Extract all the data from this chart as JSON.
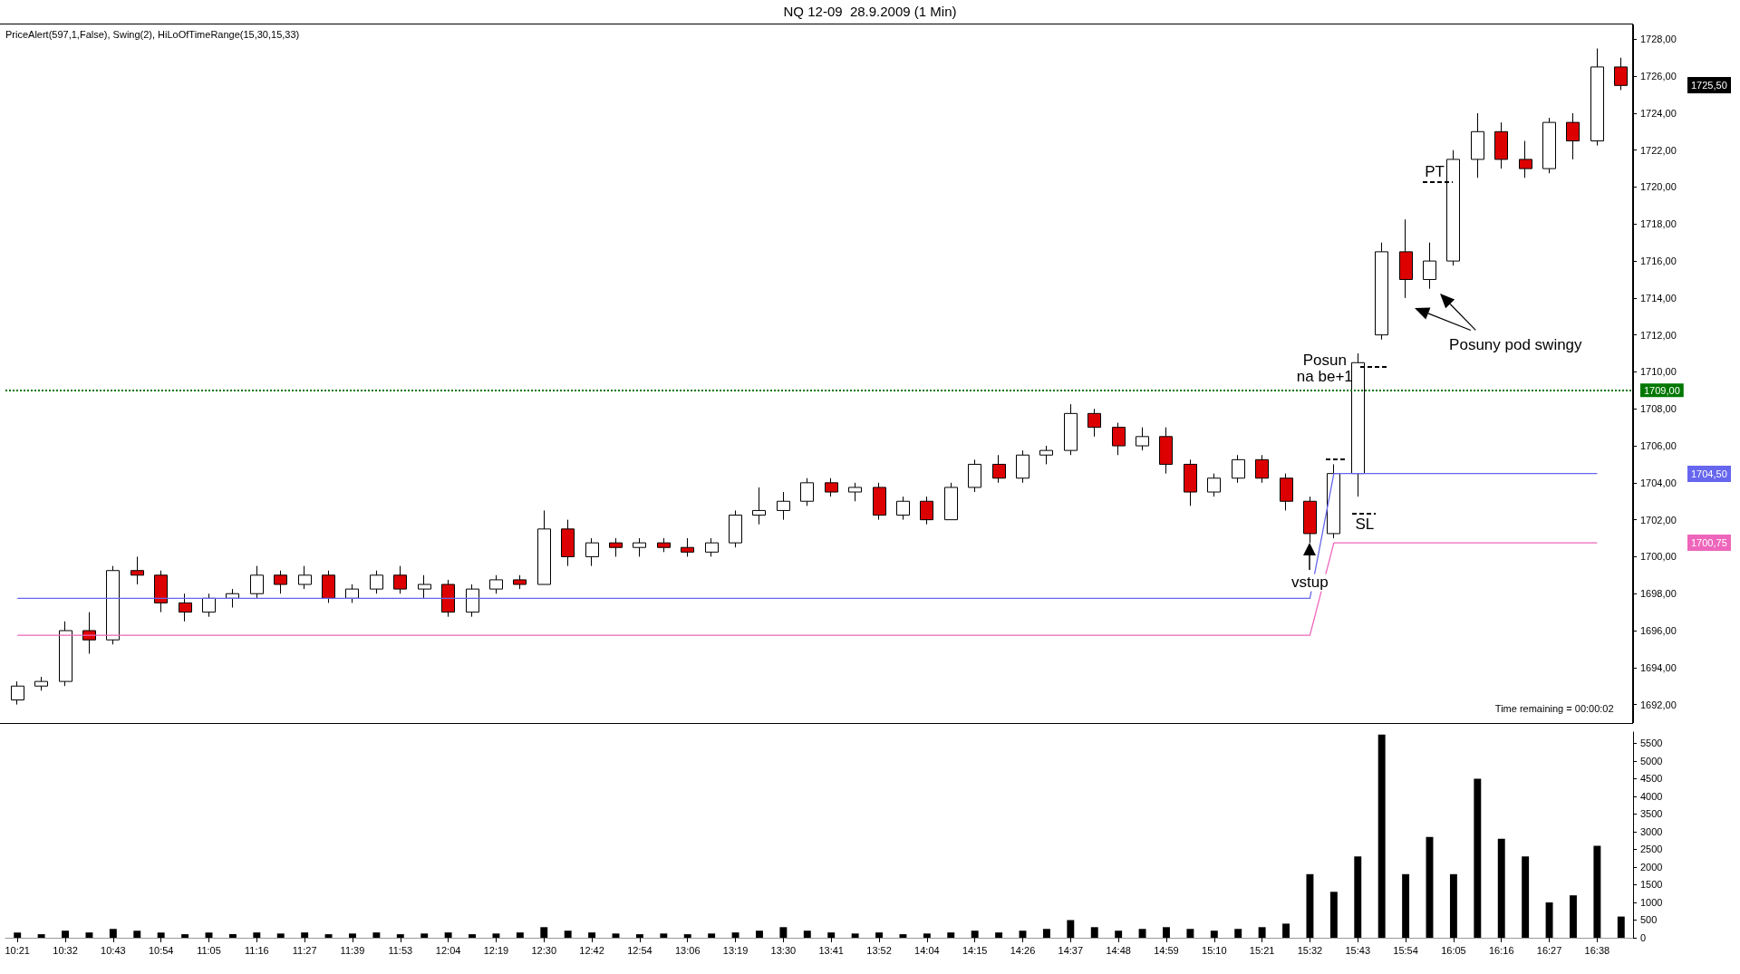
{
  "chart_data": [
    {
      "type": "candlestick",
      "title": "NQ 12-09  28.9.2009 (1 Min)",
      "categories": [
        "10:21",
        null,
        "10:32",
        null,
        "10:43",
        null,
        "10:54",
        null,
        "11:05",
        null,
        "11:16",
        null,
        "11:27",
        null,
        "11:39",
        null,
        "11:53",
        null,
        "12:04",
        null,
        "12:19",
        null,
        "12:30",
        null,
        "12:42",
        null,
        "12:54",
        null,
        "13:06",
        null,
        "13:19",
        null,
        "13:30",
        null,
        "13:41",
        null,
        "13:52",
        null,
        "14:04",
        null,
        "14:15",
        null,
        "14:26",
        null,
        "14:37",
        null,
        "14:48",
        null,
        "14:59",
        null,
        "15:10",
        null,
        "15:21",
        null,
        "15:32",
        null,
        "15:43",
        null,
        "15:54",
        null,
        "16:05",
        null,
        "16:16",
        null,
        "16:27",
        null,
        "16:38",
        null
      ],
      "ohlc": [
        [
          1692.25,
          1693.25,
          1692,
          1693
        ],
        [
          1693,
          1693.5,
          1692.75,
          1693.25
        ],
        [
          1693.25,
          1696.5,
          1693,
          1696
        ],
        [
          1696,
          1697,
          1694.75,
          1695.5
        ],
        [
          1695.5,
          1699.5,
          1695.25,
          1699.25
        ],
        [
          1699.25,
          1700,
          1698.5,
          1699
        ],
        [
          1699,
          1699.25,
          1697,
          1697.5
        ],
        [
          1697.5,
          1698,
          1696.5,
          1697
        ],
        [
          1697,
          1698,
          1696.75,
          1697.75
        ],
        [
          1697.75,
          1698.25,
          1697.25,
          1698
        ],
        [
          1698,
          1699.5,
          1697.75,
          1699
        ],
        [
          1699,
          1699.25,
          1698,
          1698.5
        ],
        [
          1698.5,
          1699.5,
          1698.25,
          1699
        ],
        [
          1699,
          1699.25,
          1697.5,
          1697.75
        ],
        [
          1697.75,
          1698.5,
          1697.5,
          1698.25
        ],
        [
          1698.25,
          1699.25,
          1698,
          1699
        ],
        [
          1699,
          1699.5,
          1698,
          1698.25
        ],
        [
          1698.25,
          1699,
          1697.75,
          1698.5
        ],
        [
          1698.5,
          1698.75,
          1696.75,
          1697
        ],
        [
          1697,
          1698.5,
          1696.75,
          1698.25
        ],
        [
          1698.25,
          1699,
          1698,
          1698.75
        ],
        [
          1698.75,
          1699,
          1698.25,
          1698.5
        ],
        [
          1698.5,
          1702.5,
          1698.5,
          1701.5
        ],
        [
          1701.5,
          1702,
          1699.5,
          1700
        ],
        [
          1700,
          1701,
          1699.5,
          1700.75
        ],
        [
          1700.75,
          1701,
          1700,
          1700.5
        ],
        [
          1700.5,
          1701,
          1700,
          1700.75
        ],
        [
          1700.75,
          1701,
          1700.25,
          1700.5
        ],
        [
          1700.5,
          1701,
          1700,
          1700.25
        ],
        [
          1700.25,
          1701,
          1700,
          1700.75
        ],
        [
          1700.75,
          1702.5,
          1700.5,
          1702.25
        ],
        [
          1702.25,
          1703.75,
          1701.75,
          1702.5
        ],
        [
          1702.5,
          1703.5,
          1702,
          1703
        ],
        [
          1703,
          1704.25,
          1702.75,
          1704
        ],
        [
          1704,
          1704.25,
          1703.25,
          1703.5
        ],
        [
          1703.5,
          1704,
          1703,
          1703.75
        ],
        [
          1703.75,
          1704,
          1702,
          1702.25
        ],
        [
          1702.25,
          1703.25,
          1702,
          1703
        ],
        [
          1703,
          1703.25,
          1701.75,
          1702
        ],
        [
          1702,
          1704,
          1702,
          1703.75
        ],
        [
          1703.75,
          1705.25,
          1703.5,
          1705
        ],
        [
          1705,
          1705.5,
          1704,
          1704.25
        ],
        [
          1704.25,
          1705.75,
          1704,
          1705.5
        ],
        [
          1705.5,
          1706,
          1705,
          1705.75
        ],
        [
          1705.75,
          1708.25,
          1705.5,
          1707.75
        ],
        [
          1707.75,
          1708,
          1706.5,
          1707
        ],
        [
          1707,
          1707.25,
          1705.5,
          1706
        ],
        [
          1706,
          1707,
          1705.75,
          1706.5
        ],
        [
          1706.5,
          1707,
          1704.5,
          1705
        ],
        [
          1705,
          1705.25,
          1702.75,
          1703.5
        ],
        [
          1703.5,
          1704.5,
          1703.25,
          1704.25
        ],
        [
          1704.25,
          1705.5,
          1704,
          1705.25
        ],
        [
          1705.25,
          1705.5,
          1704,
          1704.25
        ],
        [
          1704.25,
          1704.5,
          1702.5,
          1703
        ],
        [
          1703,
          1703.25,
          1700.75,
          1701.25
        ],
        [
          1701.25,
          1705,
          1701,
          1704.5
        ],
        [
          1704.5,
          1711,
          1703.25,
          1710.5
        ],
        [
          1712,
          1717,
          1711.75,
          1716.5
        ],
        [
          1716.5,
          1718.25,
          1714,
          1715
        ],
        [
          1715,
          1717,
          1714.5,
          1716
        ],
        [
          1716,
          1722,
          1715.75,
          1721.5
        ],
        [
          1721.5,
          1724,
          1720.5,
          1723
        ],
        [
          1723,
          1723.5,
          1721,
          1721.5
        ],
        [
          1721.5,
          1722.5,
          1720.5,
          1721
        ],
        [
          1721,
          1723.75,
          1720.75,
          1723.5
        ],
        [
          1723.5,
          1724,
          1721.5,
          1722.5
        ],
        [
          1722.5,
          1727.5,
          1722.25,
          1726.5
        ],
        [
          1726.5,
          1727,
          1725.25,
          1725.5
        ]
      ],
      "series": [
        {
          "type": "line",
          "color": "#6666ee",
          "values": [
            1697.75,
            1697.75,
            1697.75,
            1697.75,
            1697.75,
            1697.75,
            1697.75,
            1697.75,
            1697.75,
            1697.75,
            1697.75,
            1697.75,
            1697.75,
            1697.75,
            1697.75,
            1697.75,
            1697.75,
            1697.75,
            1697.75,
            1697.75,
            1697.75,
            1697.75,
            1697.75,
            1697.75,
            1697.75,
            1697.75,
            1697.75,
            1697.75,
            1697.75,
            1697.75,
            1697.75,
            1697.75,
            1697.75,
            1697.75,
            1697.75,
            1697.75,
            1697.75,
            1697.75,
            1697.75,
            1697.75,
            1697.75,
            1697.75,
            1697.75,
            1697.75,
            1697.75,
            1697.75,
            1697.75,
            1697.75,
            1697.75,
            1697.75,
            1697.75,
            1697.75,
            1697.75,
            1697.75,
            1697.75,
            1704.5,
            1704.5,
            1704.5,
            1704.5,
            1704.5,
            1704.5,
            1704.5,
            1704.5,
            1704.5,
            1704.5,
            1704.5,
            1704.5,
            null
          ]
        },
        {
          "type": "line",
          "color": "#ee66bb",
          "values": [
            1695.75,
            1695.75,
            1695.75,
            1695.75,
            1695.75,
            1695.75,
            1695.75,
            1695.75,
            1695.75,
            1695.75,
            1695.75,
            1695.75,
            1695.75,
            1695.75,
            1695.75,
            1695.75,
            1695.75,
            1695.75,
            1695.75,
            1695.75,
            1695.75,
            1695.75,
            1695.75,
            1695.75,
            1695.75,
            1695.75,
            1695.75,
            1695.75,
            1695.75,
            1695.75,
            1695.75,
            1695.75,
            1695.75,
            1695.75,
            1695.75,
            1695.75,
            1695.75,
            1695.75,
            1695.75,
            1695.75,
            1695.75,
            1695.75,
            1695.75,
            1695.75,
            1695.75,
            1695.75,
            1695.75,
            1695.75,
            1695.75,
            1695.75,
            1695.75,
            1695.75,
            1695.75,
            1695.75,
            1695.75,
            1700.75,
            1700.75,
            1700.75,
            1700.75,
            1700.75,
            1700.75,
            1700.75,
            1700.75,
            1700.75,
            1700.75,
            1700.75,
            1700.75,
            null
          ]
        }
      ],
      "ylim": [
        1691,
        1728.8
      ],
      "yticks": [
        {
          "value": 1692,
          "label": "1692,00"
        },
        {
          "value": 1694,
          "label": "1694,00"
        },
        {
          "value": 1696,
          "label": "1696,00"
        },
        {
          "value": 1698,
          "label": "1698,00"
        },
        {
          "value": 1700,
          "label": "1700,00"
        },
        {
          "value": 1702,
          "label": "1702,00"
        },
        {
          "value": 1704,
          "label": "1704,00"
        },
        {
          "value": 1706,
          "label": "1706,00"
        },
        {
          "value": 1708,
          "label": "1708,00"
        },
        {
          "value": 1710,
          "label": "1710,00"
        },
        {
          "value": 1712,
          "label": "1712,00"
        },
        {
          "value": 1714,
          "label": "1714,00"
        },
        {
          "value": 1716,
          "label": "1716,00"
        },
        {
          "value": 1718,
          "label": "1718,00"
        },
        {
          "value": 1720,
          "label": "1720,00"
        },
        {
          "value": 1722,
          "label": "1722,00"
        },
        {
          "value": 1724,
          "label": "1724,00"
        },
        {
          "value": 1726,
          "label": "1726,00"
        },
        {
          "value": 1728,
          "label": "1728,00"
        }
      ],
      "ref_lines": [
        {
          "axis": "y",
          "value": 1709,
          "label": "1709,00",
          "color": "#007700",
          "line_style": "dotted"
        }
      ],
      "annotations": [
        "PriceAlert(597,1,False), Swing(2), HiLoOfTimeRange(15,30,15,33)",
        "Time remaining = 00:00:02",
        "PT",
        "SL",
        {
          "text": "vstup",
          "x": "15:32",
          "y": 1700.75
        },
        "Posun\nna be+1",
        "Posuny pod swingy",
        "1725,50",
        "1704,50",
        "1700,75"
      ],
      "grid": false,
      "tick_labels": "y"
    },
    {
      "type": "bar",
      "categories": [
        "10:21",
        null,
        "10:32",
        null,
        "10:43",
        null,
        "10:54",
        null,
        "11:05",
        null,
        "11:16",
        null,
        "11:27",
        null,
        "11:39",
        null,
        "11:53",
        null,
        "12:04",
        null,
        "12:19",
        null,
        "12:30",
        null,
        "12:42",
        null,
        "12:54",
        null,
        "13:06",
        null,
        "13:19",
        null,
        "13:30",
        null,
        "13:41",
        null,
        "13:52",
        null,
        "14:04",
        null,
        "14:15",
        null,
        "14:26",
        null,
        "14:37",
        null,
        "14:48",
        null,
        "14:59",
        null,
        "15:10",
        null,
        "15:21",
        null,
        "15:32",
        null,
        "15:43",
        null,
        "15:54",
        null,
        "16:05",
        null,
        "16:16",
        null,
        "16:27",
        null,
        "16:38",
        null
      ],
      "values": [
        150,
        100,
        200,
        150,
        250,
        200,
        150,
        100,
        150,
        100,
        150,
        120,
        150,
        100,
        120,
        150,
        100,
        120,
        150,
        100,
        120,
        150,
        300,
        200,
        150,
        120,
        100,
        120,
        100,
        120,
        150,
        200,
        300,
        200,
        150,
        120,
        150,
        100,
        120,
        150,
        200,
        150,
        200,
        250,
        500,
        300,
        200,
        250,
        300,
        250,
        200,
        250,
        300,
        400,
        1800,
        1300,
        2300,
        5750,
        1800,
        2850,
        1800,
        4500,
        2800,
        2300,
        1000,
        1200,
        2600,
        600
      ],
      "color": "#000000",
      "ylim": [
        0,
        5820
      ],
      "yticks": [
        0,
        500,
        1000,
        1500,
        2000,
        2500,
        3000,
        3500,
        4000,
        4500,
        5000,
        5500
      ],
      "grid": false
    }
  ]
}
